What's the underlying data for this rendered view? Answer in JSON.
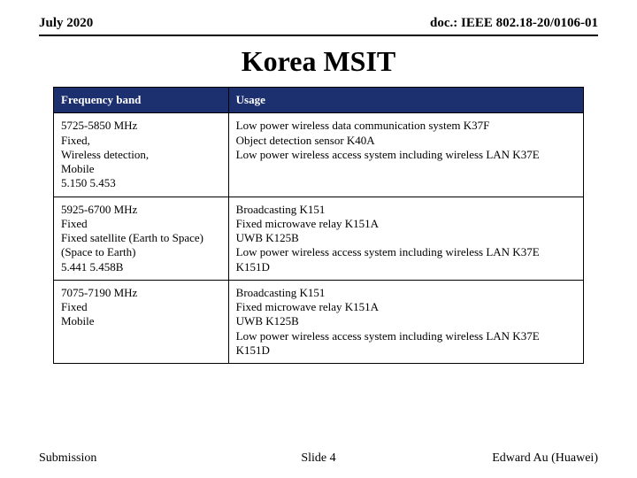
{
  "header": {
    "date": "July 2020",
    "doc": "doc.: IEEE 802.18-20/0106-01"
  },
  "title": "Korea MSIT",
  "table": {
    "header_bg": "#1c2f6e",
    "header_fg": "#ffffff",
    "columns": {
      "freq": "Frequency band",
      "usage": "Usage"
    },
    "rows": [
      {
        "freq": [
          "5725-5850 MHz",
          "Fixed,",
          "Wireless detection,",
          "Mobile",
          "5.150 5.453"
        ],
        "usage": [
          "Low power wireless data communication system K37F",
          "Object detection sensor K40A",
          "Low power wireless access system including wireless LAN K37E"
        ]
      },
      {
        "freq": [
          "5925-6700 MHz",
          "Fixed",
          "Fixed satellite (Earth to Space)(Space to Earth)",
          "5.441 5.458B"
        ],
        "usage": [
          "Broadcasting K151",
          "Fixed microwave relay K151A",
          "UWB K125B",
          "Low power wireless access system including wireless LAN K37E",
          "K151D"
        ]
      },
      {
        "freq": [
          "7075-7190 MHz",
          "Fixed",
          "Mobile"
        ],
        "usage": [
          "Broadcasting K151",
          "Fixed microwave relay K151A",
          "UWB K125B",
          "Low power wireless access system including wireless LAN K37E",
          "K151D"
        ]
      }
    ]
  },
  "footer": {
    "left": "Submission",
    "center": "Slide 4",
    "right": "Edward Au (Huawei)"
  }
}
